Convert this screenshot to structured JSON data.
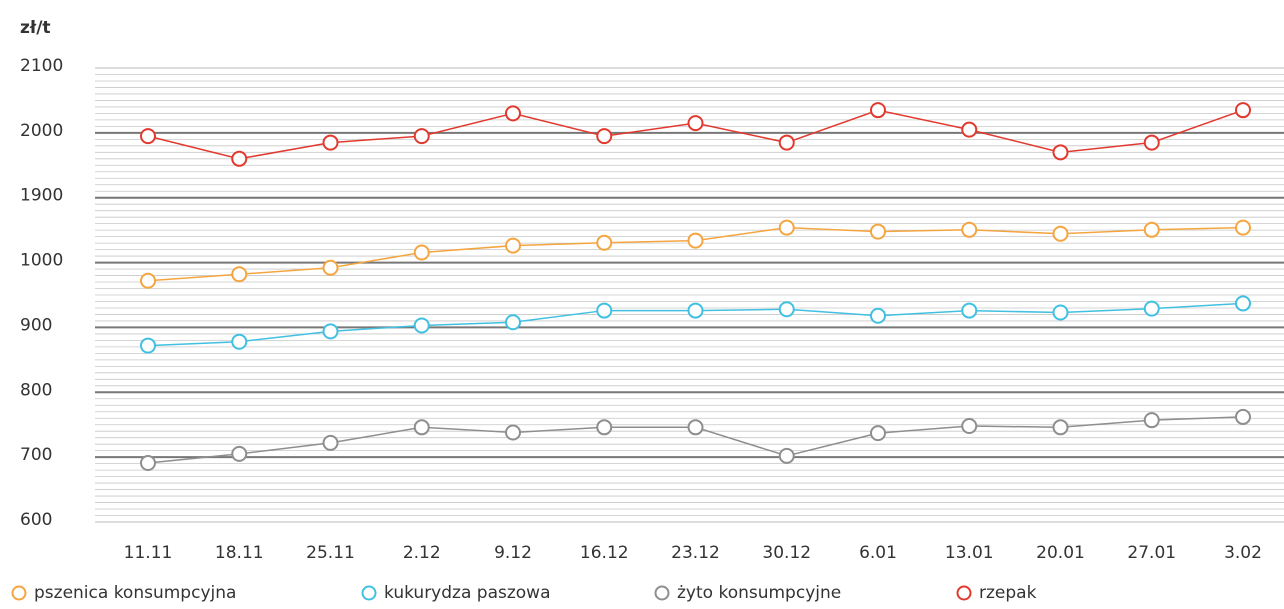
{
  "chart_data": {
    "type": "line",
    "y_label": "zł/t",
    "categories": [
      "11.11",
      "18.11",
      "25.11",
      "2.12",
      "9.12",
      "16.12",
      "23.12",
      "30.12",
      "6.01",
      "13.01",
      "20.01",
      "27.01",
      "3.02"
    ],
    "ylim": [
      600,
      2100
    ],
    "yticks": [
      600,
      700,
      800,
      900,
      1000,
      1900,
      2000,
      2100
    ],
    "grid": true,
    "series": [
      {
        "name": "pszenica konsumpcyjna",
        "color": "#f5a540",
        "values": [
          972,
          982,
          992,
          1140,
          1235,
          1275,
          1305,
          1485,
          1430,
          1455,
          1400,
          1455,
          1485
        ]
      },
      {
        "name": "kukurydza paszowa",
        "color": "#41c0e2",
        "values": [
          872,
          878,
          894,
          903,
          908,
          926,
          926,
          928,
          918,
          926,
          923,
          929,
          937
        ]
      },
      {
        "name": "żyto konsumpcyjne",
        "color": "#8e8e8e",
        "values": [
          691,
          705,
          722,
          746,
          738,
          746,
          746,
          702,
          737,
          748,
          746,
          757,
          762
        ]
      },
      {
        "name": "rzepak",
        "color": "#e2392f",
        "values": [
          1995,
          1960,
          1985,
          1995,
          2030,
          1995,
          2015,
          1985,
          2035,
          2005,
          1970,
          1985,
          2035
        ]
      }
    ]
  }
}
